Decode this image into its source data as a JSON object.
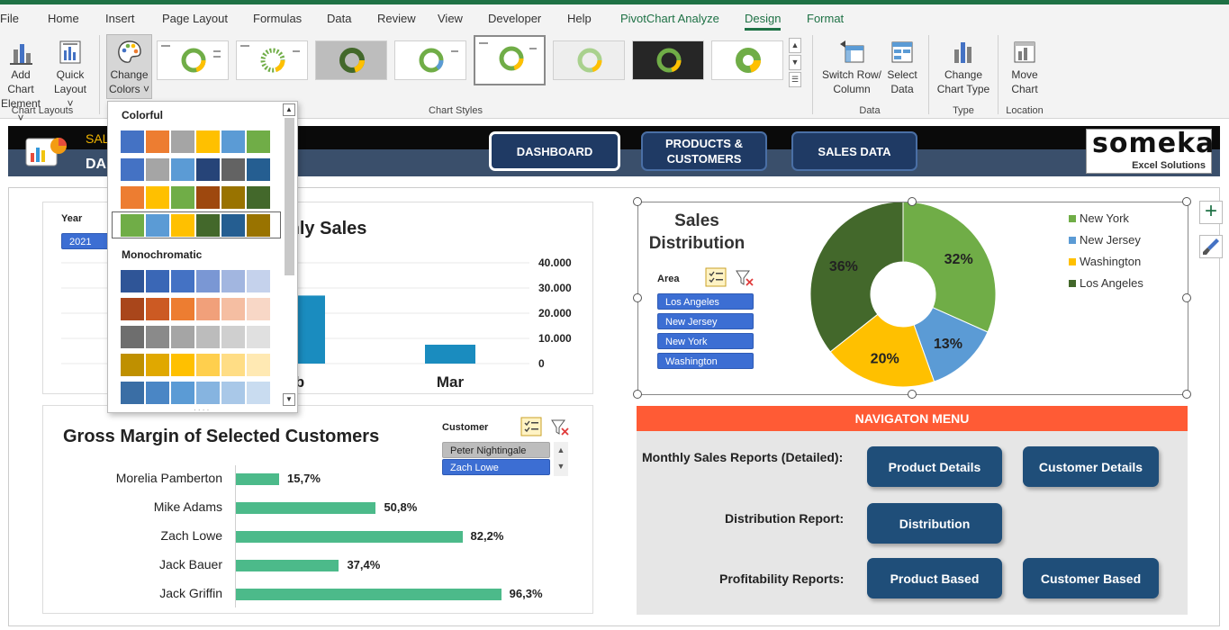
{
  "ribbon": {
    "tabs": [
      {
        "label": "File"
      },
      {
        "label": "Home"
      },
      {
        "label": "Insert"
      },
      {
        "label": "Page Layout"
      },
      {
        "label": "Formulas"
      },
      {
        "label": "Data"
      },
      {
        "label": "Review"
      },
      {
        "label": "View"
      },
      {
        "label": "Developer"
      },
      {
        "label": "Help"
      },
      {
        "label": "PivotChart Analyze"
      },
      {
        "label": "Design"
      },
      {
        "label": "Format"
      }
    ],
    "add_chart_element": {
      "line1": "Add Chart",
      "line2": "Element ˅"
    },
    "quick_layout": {
      "line1": "Quick",
      "line2": "Layout ˅"
    },
    "change_colors": {
      "line1": "Change",
      "line2": "Colors ˅"
    },
    "switch_row_column": {
      "line1": "Switch Row/",
      "line2": "Column"
    },
    "select_data": {
      "line1": "Select",
      "line2": "Data"
    },
    "change_chart_type": {
      "line1": "Change",
      "line2": "Chart Type"
    },
    "move_chart": {
      "line1": "Move",
      "line2": "Chart"
    },
    "groups": {
      "chart_layouts": "Chart Layouts",
      "chart_styles": "Chart Styles",
      "data": "Data",
      "type": "Type",
      "location": "Location"
    }
  },
  "colors": {
    "accent_green": "#1e7145",
    "nav_button": "#1f3a64",
    "menu_header": "#ff5b35",
    "menu_button": "#1f4e79",
    "bar_green": "#4cba8a",
    "bar_blue": "#1a8cbf"
  },
  "color_dropdown": {
    "colorful_title": "Colorful",
    "monochromatic_title": "Monochromatic",
    "colorful_rows": [
      [
        "#4472c4",
        "#ed7d31",
        "#a5a5a5",
        "#ffc000",
        "#5b9bd5",
        "#70ad47"
      ],
      [
        "#4472c4",
        "#a5a5a5",
        "#5b9bd5",
        "#264478",
        "#636363",
        "#255e91"
      ],
      [
        "#ed7d31",
        "#ffc000",
        "#70ad47",
        "#9e480e",
        "#997300",
        "#43682b"
      ],
      [
        "#70ad47",
        "#5b9bd5",
        "#ffc000",
        "#43682b",
        "#255e91",
        "#997300"
      ]
    ],
    "mono_rows": [
      [
        "#2f5597",
        "#3a67b6",
        "#4472c4",
        "#7a97d4",
        "#a2b6e0",
        "#c5d2ec"
      ],
      [
        "#a9461b",
        "#cc5a23",
        "#ed7d31",
        "#f1a07a",
        "#f5bea2",
        "#f8d7c6"
      ],
      [
        "#6e6e6e",
        "#8a8a8a",
        "#a5a5a5",
        "#bcbcbc",
        "#cfcfcf",
        "#e0e0e0"
      ],
      [
        "#bf9000",
        "#e0a800",
        "#ffc000",
        "#ffcf4d",
        "#ffdd85",
        "#ffe9b3"
      ],
      [
        "#3a6ea5",
        "#4a86c5",
        "#5b9bd5",
        "#86b4e0",
        "#a9c8e8",
        "#c9dcf0"
      ]
    ]
  },
  "header": {
    "title_line1": "SAL",
    "title_line2": "DA",
    "nav": {
      "dashboard": "DASHBOARD",
      "products_customers_1": "PRODUCTS &",
      "products_customers_2": "CUSTOMERS",
      "sales_data": "SALES DATA"
    },
    "logo": {
      "main": "someka",
      "sub": "Excel Solutions"
    }
  },
  "monthly_sales": {
    "title_partial": "thly Sales",
    "year_label": "Year",
    "year_value": "2021",
    "chart_data": {
      "type": "bar",
      "categories": [
        "b",
        "Mar"
      ],
      "values": [
        27000,
        7500
      ],
      "ytick_labels": [
        "40.000",
        "30.000",
        "20.000",
        "10.000",
        "0"
      ],
      "ylim": [
        0,
        40000
      ]
    }
  },
  "sales_distribution": {
    "title_line1": "Sales",
    "title_line2": "Distribution",
    "area_label": "Area",
    "areas": [
      "Los Angeles",
      "New Jersey",
      "New York",
      "Washington"
    ],
    "chart_data": {
      "type": "pie",
      "labels": [
        "New York",
        "New Jersey",
        "Washington",
        "Los Angeles"
      ],
      "values": [
        32,
        13,
        20,
        36
      ],
      "value_labels": [
        "32%",
        "13%",
        "20%",
        "36%"
      ],
      "colors": [
        "#70ad47",
        "#5b9bd5",
        "#ffc000",
        "#43682b"
      ],
      "legend_position": "right"
    }
  },
  "gross_margin": {
    "title": "Gross Margin of Selected Customers",
    "customer_label": "Customer",
    "customers_slicer": [
      "Peter Nightingale",
      "Zach Lowe"
    ],
    "chart_data": {
      "type": "bar",
      "orientation": "horizontal",
      "categories": [
        "Morelia Pamberton",
        "Mike Adams",
        "Zach Lowe",
        "Jack Bauer",
        "Jack Griffin"
      ],
      "values": [
        15.7,
        50.8,
        82.2,
        37.4,
        96.3
      ],
      "value_labels": [
        "15,7%",
        "50,8%",
        "82,2%",
        "37,4%",
        "96,3%"
      ]
    }
  },
  "nav_menu": {
    "title": "NAVIGATON MENU",
    "monthly_label": "Monthly Sales Reports (Detailed):",
    "distribution_label": "Distribution Report:",
    "profitability_label": "Profitability Reports:",
    "buttons": {
      "product_details": "Product Details",
      "customer_details": "Customer Details",
      "distribution": "Distribution",
      "product_based": "Product Based",
      "customer_based": "Customer Based"
    }
  }
}
